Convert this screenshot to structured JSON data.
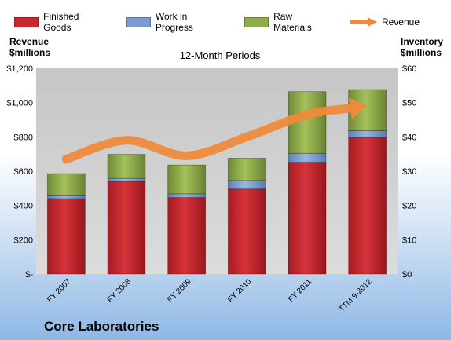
{
  "legend": {
    "finished_goods": "Finished Goods",
    "work_in_progress": "Work in Progress",
    "raw_materials": "Raw Materials",
    "revenue": "Revenue"
  },
  "axes": {
    "left_title_line1": "Revenue",
    "left_title_line2": "$millions",
    "right_title_line1": "Inventory",
    "right_title_line2": "$millions"
  },
  "subtitle": "12-Month Periods",
  "company": "Core Laboratories",
  "colors": {
    "finished_goods": "#c0242b",
    "work_in_progress": "#7b9bd0",
    "raw_materials": "#8fad47",
    "revenue": "#ee8a3a",
    "plot_bg": "#c9c9c9"
  },
  "chart_data": {
    "type": "bar",
    "categories": [
      "FY 2007",
      "FY 2008",
      "FY 2009",
      "FY 2010",
      "FY 2011",
      "TTM 9-2012"
    ],
    "series": [
      {
        "name": "Finished Goods",
        "axis": "right",
        "values": [
          22,
          27,
          22.3,
          24.8,
          32.6,
          39.8
        ]
      },
      {
        "name": "Work in Progress",
        "axis": "right",
        "values": [
          1,
          0.9,
          1.1,
          2.5,
          2.6,
          2
        ]
      },
      {
        "name": "Raw Materials",
        "axis": "right",
        "values": [
          6.3,
          7,
          8.4,
          6.5,
          18,
          12
        ]
      },
      {
        "name": "Revenue",
        "axis": "left",
        "type": "line",
        "values": [
          670,
          780,
          690,
          800,
          930,
          980
        ]
      }
    ],
    "left_axis": {
      "min": 0,
      "max": 1200,
      "ticks": [
        "$-",
        "$200",
        "$400",
        "$600",
        "$800",
        "$1,000",
        "$1,200"
      ]
    },
    "right_axis": {
      "min": 0,
      "max": 60,
      "ticks": [
        "$0",
        "$10",
        "$20",
        "$30",
        "$40",
        "$50",
        "$60"
      ]
    },
    "grid": false,
    "legend_position": "top",
    "stacked": true
  }
}
